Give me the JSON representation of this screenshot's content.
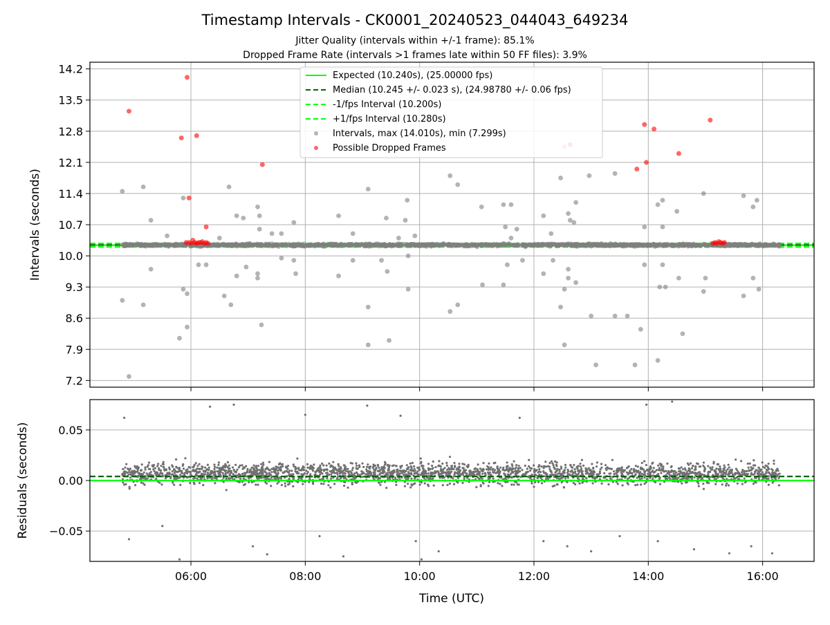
{
  "figure": {
    "title": "Timestamp Intervals - CK0001_20240523_044043_649234",
    "subtitle1": "Jitter Quality (intervals within +/-1 frame): 85.1%",
    "subtitle2": "Dropped Frame Rate (intervals >1 frames late within 50 FF files): 3.9%"
  },
  "chart_data": [
    {
      "type": "scatter",
      "panel": "top",
      "ylabel": "Intervals (seconds)",
      "ylim": [
        7.05,
        14.35
      ],
      "xlim": [
        "04:14",
        "16:54"
      ],
      "yticks": [
        "7.2",
        "7.9",
        "8.6",
        "9.3",
        "10.0",
        "10.7",
        "11.4",
        "12.1",
        "12.8",
        "13.5",
        "14.2"
      ],
      "grid": true,
      "legend_position": "top-center",
      "lines": [
        {
          "name": "Expected (10.240s), (25.00000 fps)",
          "y": 10.24,
          "color": "#00ff00",
          "style": "solid"
        },
        {
          "name": "Median (10.245 +/- 0.023 s), (24.98780 +/- 0.06 fps)",
          "y": 10.245,
          "color": "#006400",
          "style": "dashed"
        },
        {
          "name": "-1/fps Interval (10.200s)",
          "y": 10.2,
          "color": "#00ff00",
          "style": "dashed"
        },
        {
          "name": "+1/fps Interval (10.280s)",
          "y": 10.28,
          "color": "#00ff00",
          "style": "dashed"
        }
      ],
      "series": [
        {
          "name": "Intervals, max (14.010s), min (7.299s)",
          "color": "#808080",
          "points": [
            [
              "04:48",
              11.45
            ],
            [
              "04:48",
              9.0
            ],
            [
              "05:10",
              11.55
            ],
            [
              "05:10",
              8.9
            ],
            [
              "05:18",
              10.8
            ],
            [
              "05:18",
              9.7
            ],
            [
              "05:35",
              10.45
            ],
            [
              "04:55",
              7.29
            ],
            [
              "05:48",
              8.15
            ],
            [
              "05:52",
              11.3
            ],
            [
              "05:52",
              9.25
            ],
            [
              "05:56",
              8.4
            ],
            [
              "05:56",
              9.15
            ],
            [
              "06:08",
              9.8
            ],
            [
              "06:16",
              9.8
            ],
            [
              "06:30",
              10.4
            ],
            [
              "06:35",
              9.1
            ],
            [
              "06:40",
              11.55
            ],
            [
              "06:42",
              8.9
            ],
            [
              "06:48",
              10.9
            ],
            [
              "06:48",
              9.55
            ],
            [
              "06:55",
              10.85
            ],
            [
              "06:58",
              9.75
            ],
            [
              "07:10",
              11.1
            ],
            [
              "07:10",
              9.6
            ],
            [
              "07:10",
              9.5
            ],
            [
              "07:12",
              10.9
            ],
            [
              "07:12",
              10.6
            ],
            [
              "07:14",
              8.45
            ],
            [
              "07:25",
              10.5
            ],
            [
              "07:35",
              10.5
            ],
            [
              "07:35",
              9.95
            ],
            [
              "07:48",
              10.75
            ],
            [
              "07:48",
              9.9
            ],
            [
              "07:50",
              9.6
            ],
            [
              "08:35",
              10.9
            ],
            [
              "08:35",
              9.55
            ],
            [
              "08:50",
              10.5
            ],
            [
              "08:50",
              9.9
            ],
            [
              "09:06",
              11.5
            ],
            [
              "09:06",
              8.85
            ],
            [
              "09:06",
              8.0
            ],
            [
              "09:20",
              9.9
            ],
            [
              "09:25",
              10.85
            ],
            [
              "09:26",
              9.65
            ],
            [
              "09:28",
              8.1
            ],
            [
              "09:38",
              10.4
            ],
            [
              "09:45",
              10.8
            ],
            [
              "09:47",
              11.25
            ],
            [
              "09:48",
              9.25
            ],
            [
              "09:48",
              10.0
            ],
            [
              "09:55",
              10.45
            ],
            [
              "10:32",
              11.8
            ],
            [
              "10:32",
              8.75
            ],
            [
              "10:40",
              11.6
            ],
            [
              "10:40",
              8.9
            ],
            [
              "11:05",
              11.1
            ],
            [
              "11:06",
              9.35
            ],
            [
              "11:28",
              11.15
            ],
            [
              "11:28",
              9.35
            ],
            [
              "11:30",
              10.65
            ],
            [
              "11:32",
              9.8
            ],
            [
              "11:36",
              10.4
            ],
            [
              "11:36",
              11.15
            ],
            [
              "11:42",
              10.6
            ],
            [
              "11:48",
              9.9
            ],
            [
              "12:10",
              10.9
            ],
            [
              "12:10",
              9.6
            ],
            [
              "12:18",
              10.5
            ],
            [
              "12:20",
              9.9
            ],
            [
              "12:28",
              11.75
            ],
            [
              "12:28",
              8.85
            ],
            [
              "12:32",
              8.0
            ],
            [
              "12:36",
              10.95
            ],
            [
              "12:36",
              9.7
            ],
            [
              "12:38",
              10.8
            ],
            [
              "12:42",
              10.75
            ],
            [
              "12:44",
              11.2
            ],
            [
              "12:44",
              9.4
            ],
            [
              "12:36",
              9.5
            ],
            [
              "12:58",
              11.8
            ],
            [
              "13:00",
              8.65
            ],
            [
              "13:05",
              7.55
            ],
            [
              "13:25",
              11.85
            ],
            [
              "13:25",
              8.65
            ],
            [
              "13:38",
              8.65
            ],
            [
              "13:46",
              7.55
            ],
            [
              "13:52",
              8.35
            ],
            [
              "13:56",
              10.65
            ],
            [
              "13:56",
              9.8
            ],
            [
              "14:10",
              11.15
            ],
            [
              "14:10",
              7.65
            ],
            [
              "14:12",
              9.3
            ],
            [
              "14:15",
              11.25
            ],
            [
              "14:15",
              10.65
            ],
            [
              "14:15",
              9.8
            ],
            [
              "14:18",
              9.3
            ],
            [
              "14:30",
              11.0
            ],
            [
              "14:32",
              9.5
            ],
            [
              "14:36",
              8.25
            ],
            [
              "14:58",
              11.4
            ],
            [
              "14:58",
              9.2
            ],
            [
              "15:00",
              9.5
            ],
            [
              "15:40",
              11.35
            ],
            [
              "15:40",
              9.1
            ],
            [
              "15:50",
              11.1
            ],
            [
              "15:50",
              9.5
            ],
            [
              "15:54",
              11.25
            ],
            [
              "15:56",
              9.25
            ],
            [
              "12:32",
              12.45
            ],
            [
              "12:32",
              9.25
            ]
          ]
        },
        {
          "name": "Possible Dropped Frames",
          "color": "#ff0000",
          "points": [
            [
              "04:55",
              13.25
            ],
            [
              "05:50",
              12.65
            ],
            [
              "05:56",
              14.01
            ],
            [
              "06:06",
              12.7
            ],
            [
              "05:58",
              11.3
            ],
            [
              "06:16",
              10.65
            ],
            [
              "07:15",
              12.05
            ],
            [
              "13:56",
              12.95
            ],
            [
              "14:06",
              12.85
            ],
            [
              "13:48",
              11.95
            ],
            [
              "13:58",
              12.1
            ],
            [
              "14:32",
              12.3
            ],
            [
              "15:05",
              13.05
            ],
            [
              "12:38",
              12.5
            ],
            [
              "05:58",
              10.3
            ],
            [
              "06:00",
              10.28
            ],
            [
              "06:02",
              10.35
            ],
            [
              "06:04",
              10.3
            ],
            [
              "06:06",
              10.28
            ],
            [
              "06:08",
              10.3
            ],
            [
              "06:10",
              10.3
            ],
            [
              "06:12",
              10.32
            ],
            [
              "06:14",
              10.28
            ],
            [
              "06:16",
              10.3
            ],
            [
              "06:18",
              10.28
            ],
            [
              "05:55",
              10.3
            ],
            [
              "15:10",
              10.3
            ],
            [
              "15:12",
              10.28
            ],
            [
              "15:14",
              10.32
            ],
            [
              "15:16",
              10.3
            ],
            [
              "15:18",
              10.28
            ],
            [
              "15:20",
              10.3
            ],
            [
              "15:08",
              10.28
            ]
          ]
        }
      ]
    },
    {
      "type": "scatter",
      "panel": "bottom",
      "ylabel": "Residuals (seconds)",
      "xlabel": "Time (UTC)",
      "xticks": [
        "06:00",
        "08:00",
        "10:00",
        "12:00",
        "14:00",
        "16:00"
      ],
      "yticks": [
        "−0.05",
        "0.00",
        "0.05"
      ],
      "ylim": [
        -0.08,
        0.08
      ],
      "grid": true,
      "lines": [
        {
          "y": 0.0,
          "color": "#00ff00",
          "style": "solid"
        },
        {
          "y": 0.004,
          "color": "#006400",
          "style": "dashed"
        }
      ],
      "series": [
        {
          "color": "#808080",
          "x_range": [
            "04:48",
            "16:18"
          ],
          "y_band": [
            -0.03,
            0.045
          ],
          "n_points": 2500,
          "outliers": [
            [
              "04:50",
              0.062
            ],
            [
              "04:55",
              -0.058
            ],
            [
              "05:30",
              -0.045
            ],
            [
              "06:20",
              0.073
            ],
            [
              "06:45",
              0.075
            ],
            [
              "07:05",
              -0.065
            ],
            [
              "07:20",
              -0.073
            ],
            [
              "08:00",
              0.065
            ],
            [
              "08:15",
              -0.055
            ],
            [
              "08:40",
              -0.075
            ],
            [
              "09:05",
              0.074
            ],
            [
              "09:40",
              0.064
            ],
            [
              "09:56",
              -0.06
            ],
            [
              "10:02",
              -0.078
            ],
            [
              "10:20",
              -0.07
            ],
            [
              "11:45",
              0.062
            ],
            [
              "12:10",
              -0.06
            ],
            [
              "12:35",
              -0.065
            ],
            [
              "13:00",
              -0.07
            ],
            [
              "13:30",
              -0.055
            ],
            [
              "13:58",
              0.075
            ],
            [
              "14:10",
              -0.06
            ],
            [
              "14:25",
              0.078
            ],
            [
              "14:48",
              -0.068
            ],
            [
              "15:25",
              -0.072
            ],
            [
              "15:48",
              -0.065
            ],
            [
              "16:10",
              -0.072
            ],
            [
              "05:48",
              -0.078
            ]
          ]
        }
      ]
    }
  ]
}
